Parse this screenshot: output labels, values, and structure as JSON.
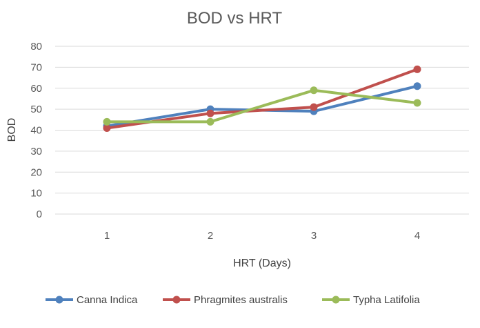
{
  "chart_data": {
    "type": "line",
    "title": "BOD vs HRT",
    "xlabel": "HRT (Days)",
    "ylabel": "BOD",
    "categories": [
      "1",
      "2",
      "3",
      "4"
    ],
    "ylim": [
      0,
      80
    ],
    "yticks": [
      "0",
      "10",
      "20",
      "30",
      "40",
      "50",
      "60",
      "70",
      "80"
    ],
    "grid": true,
    "legend_position": "bottom",
    "series": [
      {
        "name": "Canna Indica",
        "values": [
          42,
          50,
          49,
          61
        ],
        "color": "#4f81bd"
      },
      {
        "name": "Phragmites australis",
        "values": [
          41,
          48,
          51,
          69
        ],
        "color": "#c0504d"
      },
      {
        "name": "Typha Latifolia",
        "values": [
          44,
          44,
          59,
          53
        ],
        "color": "#9bbb59"
      }
    ]
  }
}
